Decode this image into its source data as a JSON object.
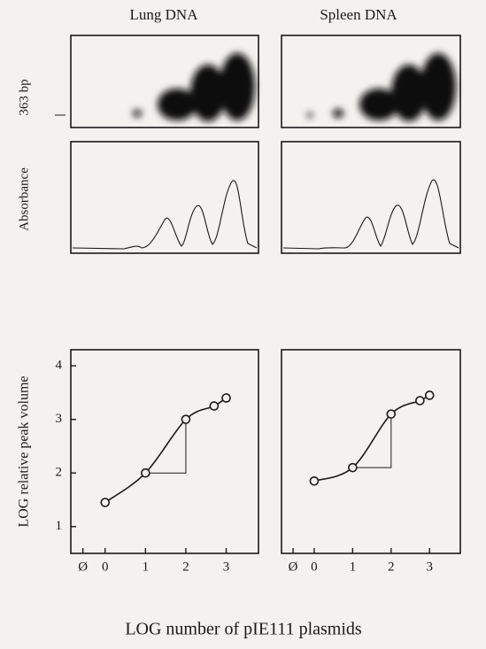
{
  "figure": {
    "lung_title": "Lung DNA",
    "spleen_title": "Spleen DNA",
    "gel_label": "363 bp",
    "trace_label": "Absorbance",
    "x_label": "LOG number of pIE111 plasmids"
  },
  "chart_data": [
    {
      "type": "line",
      "y_label": "LOG relative peak volume",
      "x": [
        0,
        1,
        2,
        2.7,
        3
      ],
      "series": [
        {
          "color": "#1a1a1a",
          "values": [
            1.45,
            2.0,
            3.0,
            3.25,
            3.4
          ]
        }
      ],
      "xlim": [
        -0.85,
        3.8
      ],
      "xticks": [
        {
          "value": -0.55,
          "label": "Ø"
        },
        0,
        1,
        2,
        3
      ],
      "ylim": [
        0.5,
        4.3
      ],
      "yticks": [
        1,
        2,
        3,
        4
      ]
    },
    {
      "type": "line",
      "x": [
        0,
        1,
        2,
        2.75,
        3
      ],
      "series": [
        {
          "color": "#1a1a1a",
          "values": [
            1.85,
            2.1,
            3.1,
            3.35,
            3.45
          ]
        }
      ],
      "xlim": [
        -0.85,
        3.8
      ],
      "xticks": [
        {
          "value": -0.55,
          "label": "Ø"
        },
        0,
        1,
        2,
        3
      ],
      "ylim": [
        0.5,
        4.3
      ]
    }
  ]
}
